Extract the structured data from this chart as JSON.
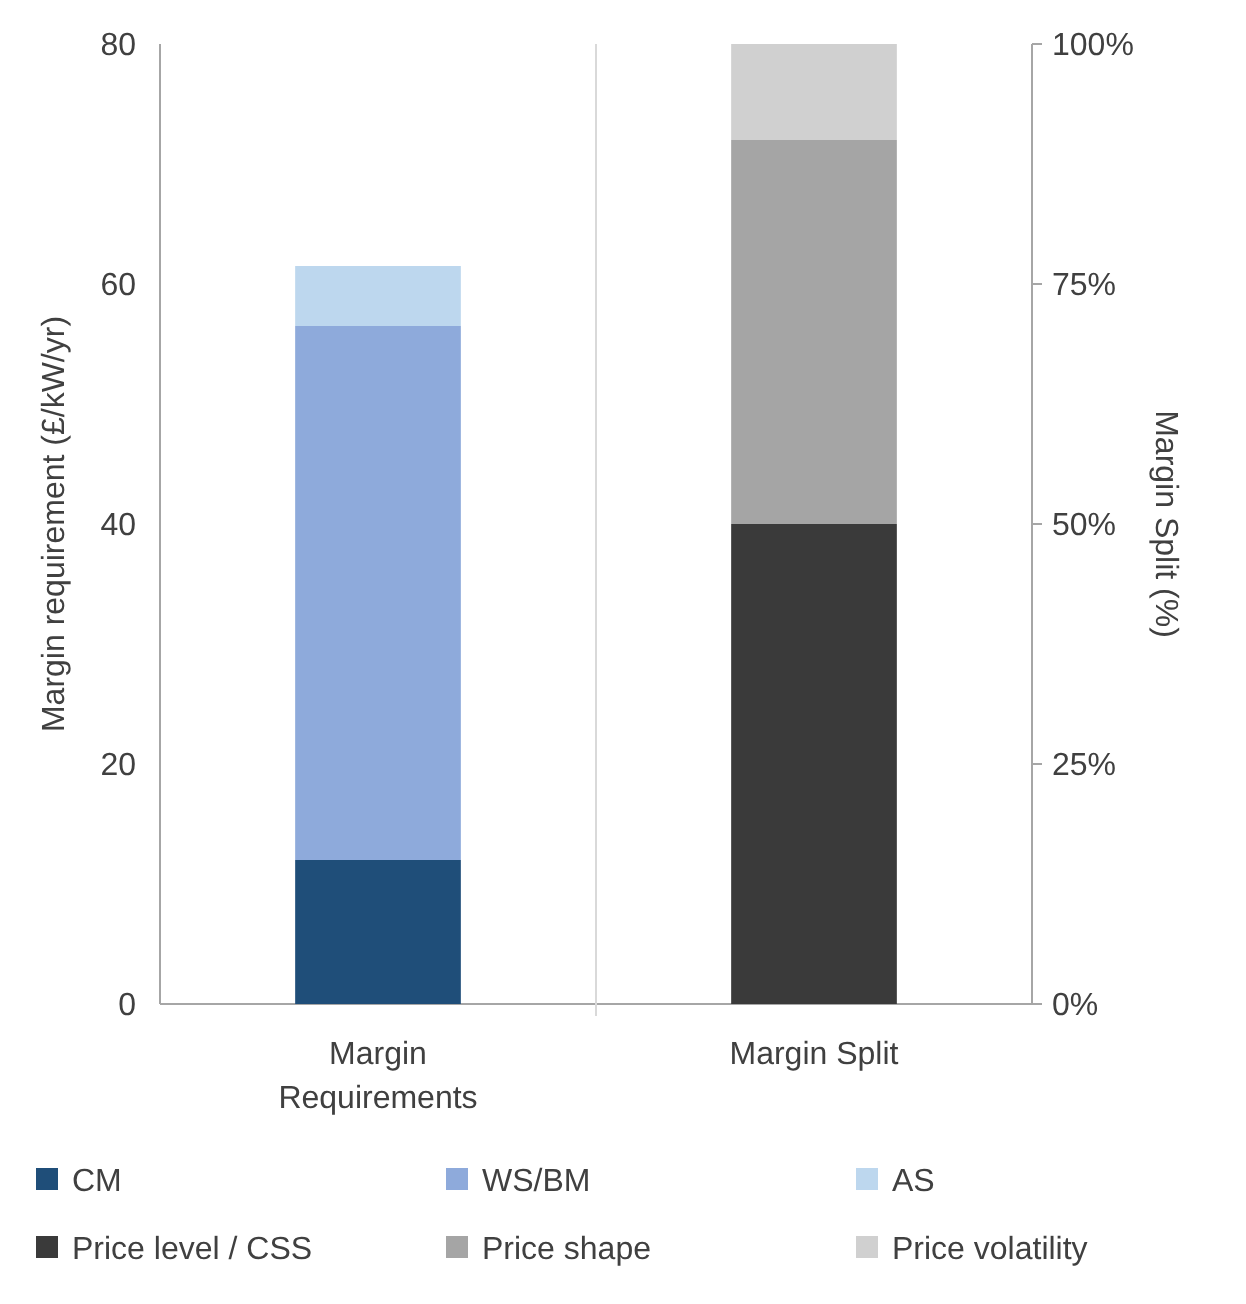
{
  "chart_data": {
    "type": "bar",
    "stacked": true,
    "categories": [
      "Margin Requirements",
      "Margin Split"
    ],
    "ylabel": "Margin requirement (£/kW/yr)",
    "y2label": "Margin Split (%)",
    "ylim": [
      0,
      80
    ],
    "yticks": [
      0,
      20,
      40,
      60,
      80
    ],
    "y2lim": [
      0,
      100
    ],
    "y2ticks": [
      {
        "value": 0,
        "label": "0%"
      },
      {
        "value": 25,
        "label": "25%"
      },
      {
        "value": 50,
        "label": "50%"
      },
      {
        "value": 75,
        "label": "75%"
      },
      {
        "value": 100,
        "label": "100%"
      }
    ],
    "legend": "bottom",
    "series": [
      {
        "name": "CM",
        "color": "#1f4e79",
        "values": [
          12,
          null
        ]
      },
      {
        "name": "WS/BM",
        "color": "#8eaadb",
        "values": [
          44.5,
          null
        ]
      },
      {
        "name": "AS",
        "color": "#bdd7ee",
        "values": [
          5,
          null
        ]
      },
      {
        "name": "Price level / CSS",
        "color": "#3a3a3a",
        "axis": "y2",
        "values": [
          null,
          50
        ]
      },
      {
        "name": "Price shape",
        "color": "#a5a5a5",
        "axis": "y2",
        "values": [
          null,
          40
        ]
      },
      {
        "name": "Price volatility",
        "color": "#d0d0d0",
        "axis": "y2",
        "values": [
          null,
          10
        ]
      }
    ]
  }
}
